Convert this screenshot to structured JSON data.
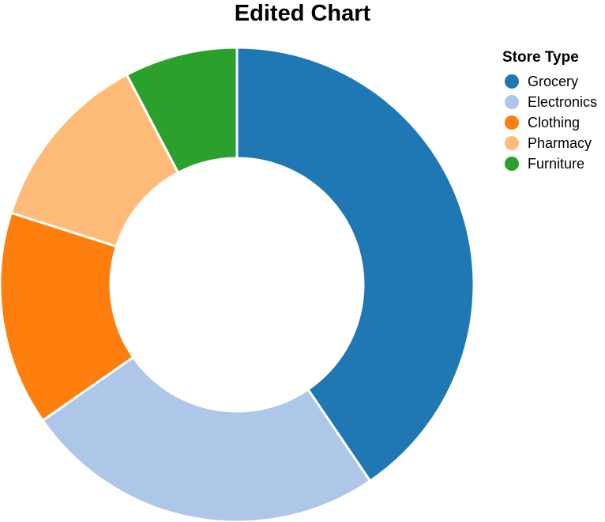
{
  "chart_data": {
    "type": "pie",
    "style": "donut",
    "title": "Edited Chart",
    "legend": {
      "title": "Store Type",
      "placement": "top-right"
    },
    "categories": [
      "Grocery",
      "Electronics",
      "Clothing",
      "Pharmacy",
      "Furniture"
    ],
    "values": [
      40.5,
      24.8,
      14.6,
      12.4,
      7.7
    ],
    "colors": [
      "#1f77b4",
      "#aec7e8",
      "#ff7f0e",
      "#ffbb78",
      "#2ca02c"
    ]
  }
}
